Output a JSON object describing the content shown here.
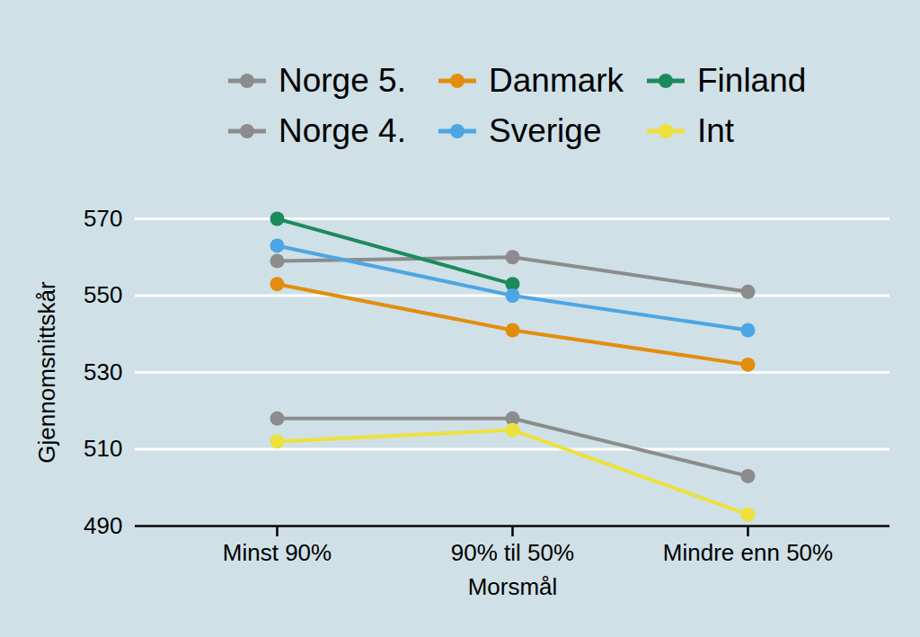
{
  "chart_data": {
    "type": "line",
    "x_label": "Morsmål",
    "y_label": "Gjennomsnittskår",
    "categories": [
      "Minst 90%",
      "90% til 50%",
      "Mindre enn 50%"
    ],
    "series": [
      {
        "name": "Norge 5.",
        "color": "#8c8c8c",
        "values": [
          559,
          560,
          551
        ]
      },
      {
        "name": "Danmark",
        "color": "#e38d0e",
        "values": [
          553,
          541,
          532
        ]
      },
      {
        "name": "Finland",
        "color": "#1b8b5c",
        "values": [
          570,
          553,
          null
        ]
      },
      {
        "name": "Norge 4.",
        "color": "#8c8c8c",
        "values": [
          518,
          518,
          503
        ]
      },
      {
        "name": "Sverige",
        "color": "#4da6e3",
        "values": [
          563,
          550,
          541
        ]
      },
      {
        "name": "Int",
        "color": "#ede13b",
        "values": [
          512,
          515,
          493
        ]
      }
    ],
    "ylim": [
      490,
      570
    ],
    "yticks": [
      490,
      510,
      530,
      550,
      570
    ],
    "grid": true,
    "legend": "top",
    "marker": "circle"
  }
}
